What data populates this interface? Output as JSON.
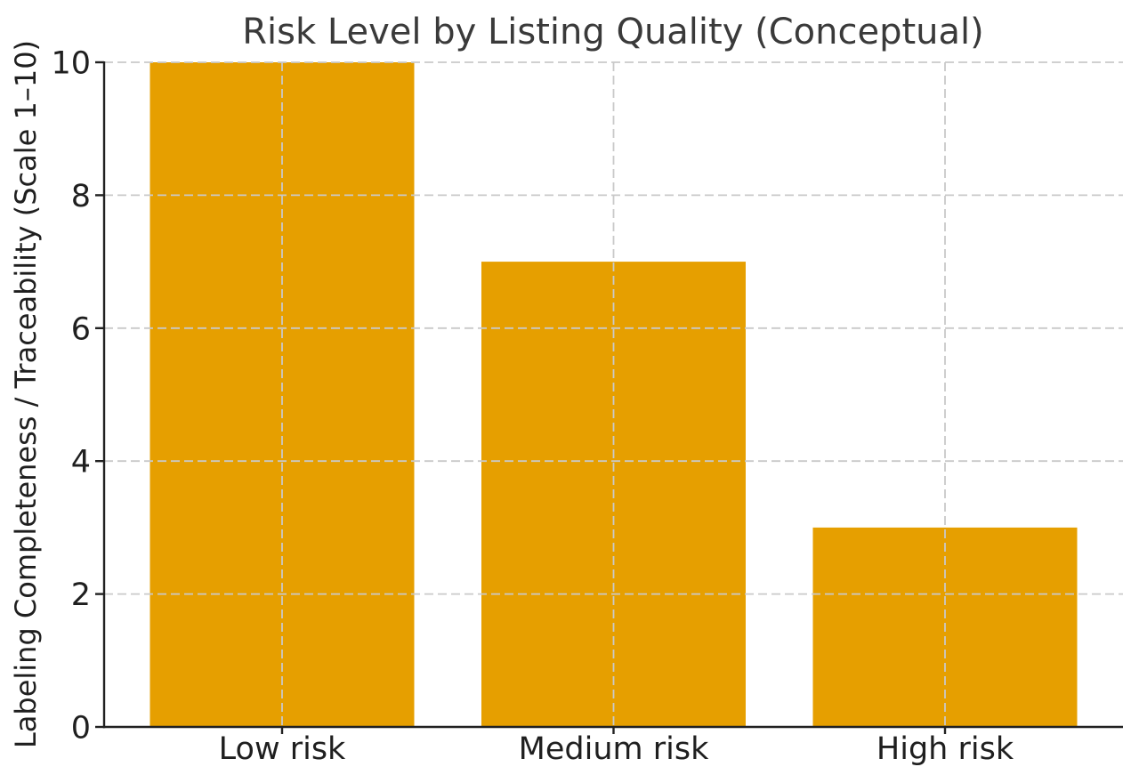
{
  "chart_data": {
    "type": "bar",
    "title": "Risk Level by Listing Quality (Conceptual)",
    "categories": [
      "Low risk",
      "Medium risk",
      "High risk"
    ],
    "values": [
      10,
      7,
      3
    ],
    "xlabel": "",
    "ylabel": "Labeling Completeness / Traceability (Scale 1–10)",
    "ylim": [
      0,
      10
    ],
    "yticks": [
      0,
      2,
      4,
      6,
      8,
      10
    ],
    "legend": null,
    "grid": {
      "style": "dashed",
      "horizontal": true,
      "vertical": true,
      "position": "above-bars"
    },
    "colors": {
      "bar": "#E69F00",
      "grid": "#c9c9c9",
      "spine": "#212121",
      "tick_label": "#1f1f1f",
      "title": "#3a3a3a"
    }
  }
}
